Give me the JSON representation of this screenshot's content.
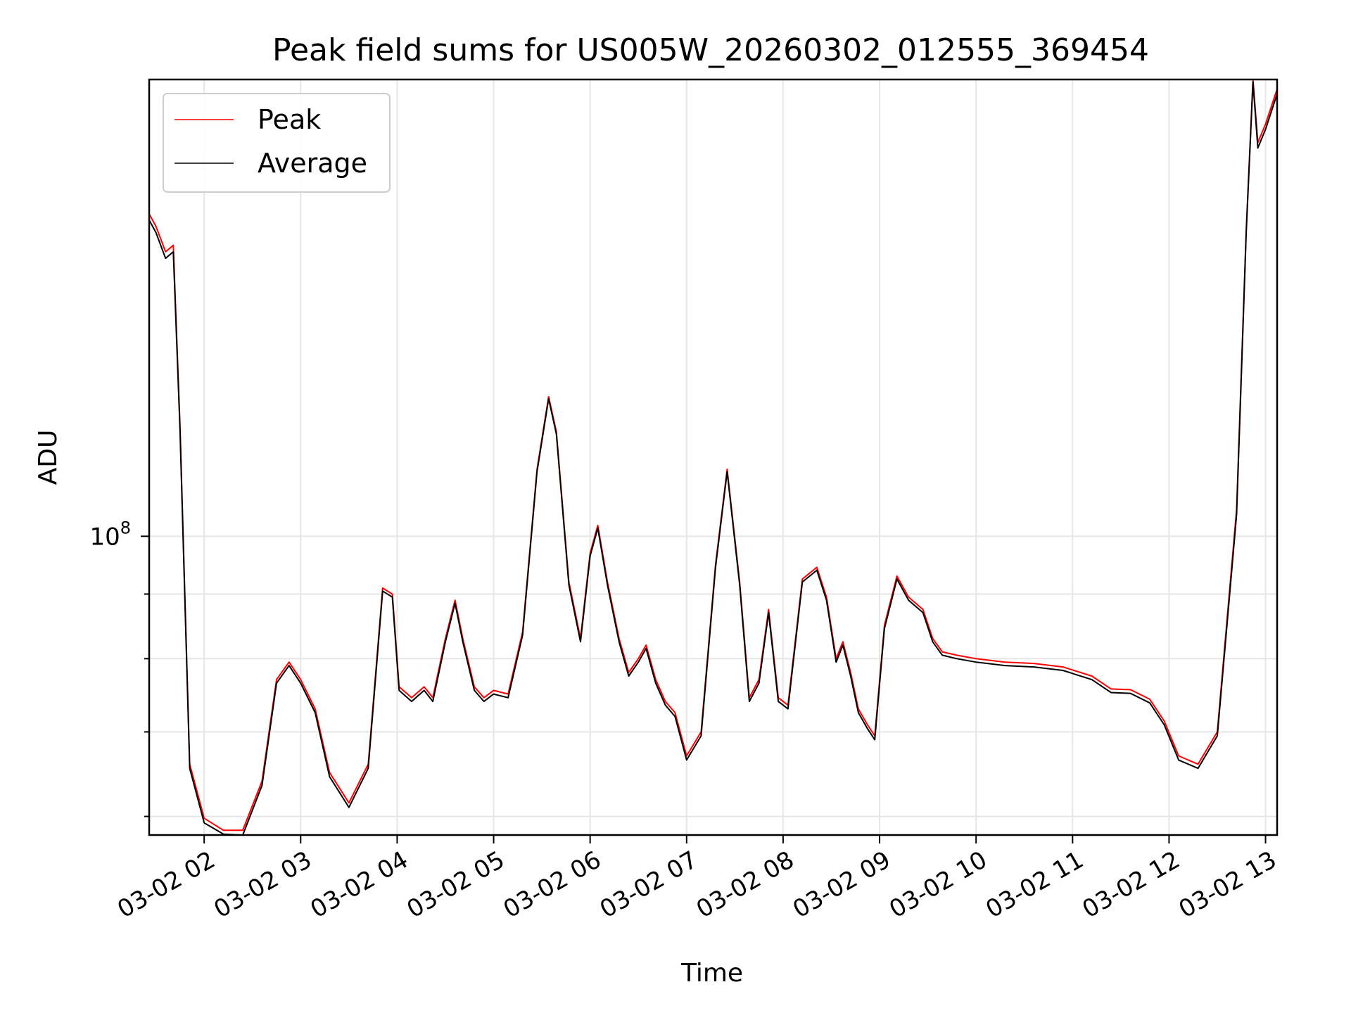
{
  "chart_data": {
    "type": "line",
    "title": "Peak field sums for US005W_20260302_012555_369454",
    "xlabel": "Time",
    "ylabel": "ADU",
    "yscale": "log",
    "xlim": [
      1.43,
      13.12
    ],
    "ylim": [
      58000000,
      230000000
    ],
    "grid": true,
    "legend_position": "top-left",
    "x_ticks": [
      {
        "value": 2,
        "label": "03-02 02"
      },
      {
        "value": 3,
        "label": "03-02 03"
      },
      {
        "value": 4,
        "label": "03-02 04"
      },
      {
        "value": 5,
        "label": "03-02 05"
      },
      {
        "value": 6,
        "label": "03-02 06"
      },
      {
        "value": 7,
        "label": "03-02 07"
      },
      {
        "value": 8,
        "label": "03-02 08"
      },
      {
        "value": 9,
        "label": "03-02 09"
      },
      {
        "value": 10,
        "label": "03-02 10"
      },
      {
        "value": 11,
        "label": "03-02 11"
      },
      {
        "value": 12,
        "label": "03-02 12"
      },
      {
        "value": 13,
        "label": "03-02 13"
      }
    ],
    "y_major_tick": {
      "value": 100000000,
      "label_base": "10",
      "label_exp": "8"
    },
    "y_minor_ticks": [
      60000000,
      70000000,
      80000000,
      90000000
    ],
    "series": [
      {
        "name": "Peak",
        "color": "#ff0000",
        "x": [
          1.43,
          1.5,
          1.6,
          1.68,
          1.75,
          1.85,
          2.0,
          2.2,
          2.4,
          2.6,
          2.75,
          2.88,
          3.0,
          3.15,
          3.3,
          3.5,
          3.7,
          3.85,
          3.95,
          4.02,
          4.15,
          4.28,
          4.37,
          4.5,
          4.6,
          4.68,
          4.8,
          4.9,
          5.0,
          5.15,
          5.3,
          5.45,
          5.57,
          5.65,
          5.78,
          5.9,
          6.0,
          6.08,
          6.18,
          6.3,
          6.4,
          6.5,
          6.58,
          6.68,
          6.78,
          6.88,
          7.0,
          7.15,
          7.3,
          7.42,
          7.55,
          7.65,
          7.75,
          7.85,
          7.95,
          8.05,
          8.2,
          8.35,
          8.45,
          8.55,
          8.62,
          8.7,
          8.78,
          8.87,
          8.95,
          9.05,
          9.18,
          9.3,
          9.45,
          9.55,
          9.65,
          9.8,
          10.0,
          10.3,
          10.6,
          10.9,
          11.2,
          11.4,
          11.6,
          11.8,
          11.95,
          12.1,
          12.3,
          12.5,
          12.7,
          12.8,
          12.87,
          12.92,
          13.0,
          13.12
        ],
        "values": [
          180000000,
          176000000,
          168000000,
          170000000,
          122000000,
          66000000,
          59800000,
          58500000,
          58500000,
          64000000,
          77000000,
          79500000,
          77000000,
          73000000,
          65000000,
          61500000,
          66000000,
          91000000,
          90000000,
          76000000,
          74500000,
          76000000,
          74500000,
          83000000,
          89000000,
          83000000,
          76000000,
          74500000,
          75500000,
          75000000,
          84000000,
          113000000,
          129000000,
          121000000,
          92000000,
          83000000,
          97000000,
          102000000,
          92000000,
          83000000,
          78000000,
          80000000,
          82000000,
          77000000,
          74000000,
          72500000,
          67000000,
          70000000,
          95000000,
          113000000,
          92000000,
          74500000,
          77000000,
          87500000,
          74500000,
          73500000,
          92500000,
          94500000,
          89500000,
          80000000,
          82500000,
          78000000,
          73000000,
          71000000,
          69500000,
          85000000,
          93000000,
          89500000,
          87500000,
          83000000,
          81000000,
          80500000,
          80000000,
          79500000,
          79300000,
          78800000,
          77500000,
          75700000,
          75600000,
          74300000,
          71400000,
          67000000,
          66000000,
          70000000,
          105000000,
          175000000,
          230000000,
          205000000,
          212000000,
          226000000
        ]
      },
      {
        "name": "Average",
        "color": "#000000",
        "x": [
          1.43,
          1.5,
          1.6,
          1.68,
          1.75,
          1.85,
          2.0,
          2.2,
          2.4,
          2.6,
          2.75,
          2.88,
          3.0,
          3.15,
          3.3,
          3.5,
          3.7,
          3.85,
          3.95,
          4.02,
          4.15,
          4.28,
          4.37,
          4.5,
          4.6,
          4.68,
          4.8,
          4.9,
          5.0,
          5.15,
          5.3,
          5.45,
          5.57,
          5.65,
          5.78,
          5.9,
          6.0,
          6.08,
          6.18,
          6.3,
          6.4,
          6.5,
          6.58,
          6.68,
          6.78,
          6.88,
          7.0,
          7.15,
          7.3,
          7.42,
          7.55,
          7.65,
          7.75,
          7.85,
          7.95,
          8.05,
          8.2,
          8.35,
          8.45,
          8.55,
          8.62,
          8.7,
          8.78,
          8.87,
          8.95,
          9.05,
          9.18,
          9.3,
          9.45,
          9.55,
          9.65,
          9.8,
          10.0,
          10.3,
          10.6,
          10.9,
          11.2,
          11.4,
          11.6,
          11.8,
          11.95,
          12.1,
          12.3,
          12.5,
          12.7,
          12.8,
          12.87,
          12.92,
          13.0,
          13.12
        ],
        "values": [
          178000000,
          174000000,
          166000000,
          168000000,
          121000000,
          65500000,
          59300000,
          58100000,
          58000000,
          63500000,
          76500000,
          79000000,
          76500000,
          72500000,
          64500000,
          61000000,
          65500000,
          90500000,
          89500000,
          75500000,
          74000000,
          75500000,
          74000000,
          82500000,
          88500000,
          82500000,
          75500000,
          74000000,
          75000000,
          74500000,
          83500000,
          112500000,
          128500000,
          120500000,
          91500000,
          82500000,
          96500000,
          101500000,
          91500000,
          82500000,
          77500000,
          79500000,
          81500000,
          76500000,
          73500000,
          72000000,
          66500000,
          69500000,
          94500000,
          112500000,
          91500000,
          74000000,
          76500000,
          87000000,
          74000000,
          73000000,
          92000000,
          94000000,
          89000000,
          79500000,
          82000000,
          77500000,
          72500000,
          70500000,
          69000000,
          84500000,
          92500000,
          89000000,
          87000000,
          82500000,
          80500000,
          80000000,
          79500000,
          79000000,
          78800000,
          78300000,
          77000000,
          75200000,
          75100000,
          73800000,
          70900000,
          66500000,
          65500000,
          69500000,
          104000000,
          174000000,
          229000000,
          203000000,
          210000000,
          224000000
        ]
      }
    ]
  }
}
